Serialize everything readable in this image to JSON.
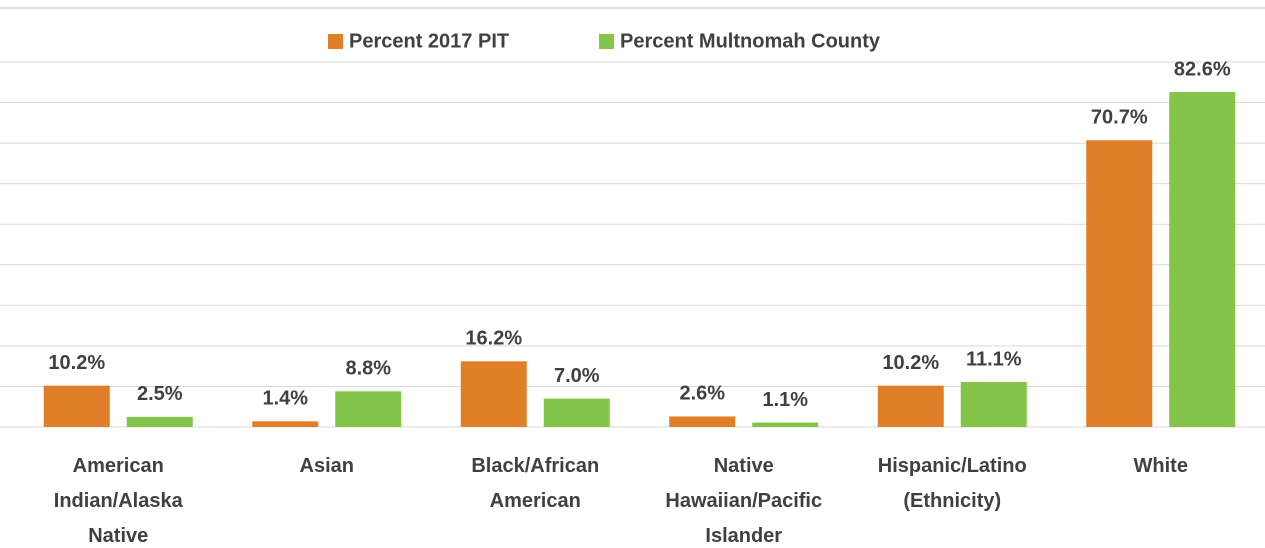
{
  "chart_data": {
    "type": "bar",
    "categories": [
      "American Indian/Alaska Native",
      "Asian",
      "Black/African American",
      "Native Hawaiian/Pacific Islander",
      "Hispanic/Latino (Ethnicity)",
      "White"
    ],
    "series": [
      {
        "name": "Percent 2017 PIT",
        "color": "#e07f27",
        "values": [
          10.2,
          1.4,
          16.2,
          2.6,
          10.2,
          70.7
        ],
        "value_labels": [
          "10.2%",
          "1.4%",
          "16.2%",
          "2.6%",
          "10.2%",
          "70.7%"
        ]
      },
      {
        "name": "Percent Multnomah County",
        "color": "#84c44b",
        "values": [
          2.5,
          8.8,
          7.0,
          1.1,
          11.1,
          82.6
        ],
        "value_labels": [
          "2.5%",
          "8.8%",
          "7.0%",
          "1.1%",
          "11.1%",
          "82.6%"
        ]
      }
    ],
    "ylim": [
      0,
      90
    ],
    "yticks": [
      0,
      10,
      20,
      30,
      40,
      50,
      60,
      70,
      80,
      90
    ],
    "grid": true,
    "legend": "top"
  }
}
